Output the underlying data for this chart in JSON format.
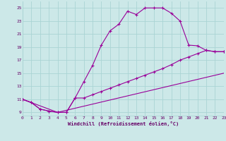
{
  "background_color": "#cce8e8",
  "grid_color": "#aad4d4",
  "line_color": "#990099",
  "xlim": [
    0,
    23
  ],
  "ylim": [
    8.5,
    26.0
  ],
  "xticks": [
    0,
    1,
    2,
    3,
    4,
    5,
    6,
    7,
    8,
    9,
    10,
    11,
    12,
    13,
    14,
    15,
    16,
    17,
    18,
    19,
    20,
    21,
    22,
    23
  ],
  "yticks": [
    9,
    11,
    13,
    15,
    17,
    19,
    21,
    23,
    25
  ],
  "xlabel": "Windchill (Refroidissement éolien,°C)",
  "curve1_x": [
    0,
    1,
    2,
    3,
    4,
    5,
    6,
    7,
    8,
    9,
    10,
    11,
    12,
    13,
    14,
    15,
    16,
    17,
    18,
    19,
    20,
    21,
    22,
    23
  ],
  "curve1_y": [
    11.0,
    10.5,
    9.5,
    9.2,
    9.0,
    9.0,
    11.2,
    13.7,
    16.2,
    19.3,
    21.5,
    22.5,
    24.5,
    24.0,
    25.0,
    25.0,
    25.0,
    24.2,
    23.0,
    19.3,
    19.2,
    18.5,
    18.3,
    18.3
  ],
  "curve2_x": [
    0,
    1,
    2,
    3,
    4,
    5,
    6,
    7,
    8,
    9,
    10,
    11,
    12,
    13,
    14,
    15,
    16,
    17,
    18,
    19,
    20,
    21,
    22,
    23
  ],
  "curve2_y": [
    11.0,
    10.5,
    9.5,
    9.2,
    9.0,
    9.0,
    11.2,
    11.2,
    11.7,
    12.2,
    12.7,
    13.2,
    13.7,
    14.2,
    14.7,
    15.2,
    15.7,
    16.3,
    17.0,
    17.5,
    18.0,
    18.5,
    18.3,
    18.3
  ],
  "curve3_x": [
    0,
    4,
    23
  ],
  "curve3_y": [
    11.0,
    9.0,
    15.0
  ]
}
